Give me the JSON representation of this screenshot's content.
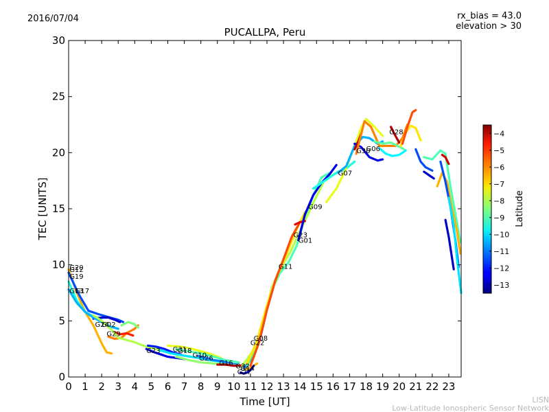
{
  "date_label": "2016/07/04",
  "info_lines": [
    "rx_bias = 43.0",
    "elevation > 30"
  ],
  "watermark_lines": [
    "LISN",
    "Low-Latitude Ionospheric Sensor Network"
  ],
  "chart_data": {
    "type": "scatter",
    "title": "PUCALLPA, Peru",
    "xlabel": "Time [UT]",
    "ylabel": "TEC [UNITS]",
    "xlim": [
      0,
      23.75
    ],
    "ylim": [
      0,
      30
    ],
    "x_ticks": [
      "0",
      "1",
      "2",
      "3",
      "4",
      "5",
      "6",
      "7",
      "8",
      "9",
      "10",
      "11",
      "12",
      "13",
      "14",
      "15",
      "16",
      "17",
      "18",
      "19",
      "20",
      "21",
      "22",
      "23"
    ],
    "y_ticks": [
      "0",
      "5",
      "10",
      "15",
      "20",
      "25",
      "30"
    ],
    "grid": false,
    "colorbar": {
      "label": "Latitude",
      "range": [
        -13.5,
        -3.5
      ],
      "ticks": [
        "−4",
        "−5",
        "−6",
        "−7",
        "−8",
        "−9",
        "−10",
        "−11",
        "−12",
        "−13"
      ],
      "tick_values": [
        -4,
        -5,
        -6,
        -7,
        -8,
        -9,
        -10,
        -11,
        -12,
        -13
      ],
      "colormap": "jet"
    },
    "satellite_labels": [
      {
        "text": "G20",
        "x": 0.05,
        "y": 9.8
      },
      {
        "text": "G12",
        "x": 0.05,
        "y": 9.6
      },
      {
        "text": "G19",
        "x": 0.05,
        "y": 9.0
      },
      {
        "text": "G13",
        "x": 0.05,
        "y": 7.7
      },
      {
        "text": "G17",
        "x": 0.4,
        "y": 7.7
      },
      {
        "text": "G24",
        "x": 1.6,
        "y": 4.7
      },
      {
        "text": "G02",
        "x": 2.0,
        "y": 4.7
      },
      {
        "text": "G29",
        "x": 2.3,
        "y": 3.9
      },
      {
        "text": "G23",
        "x": 4.7,
        "y": 2.4
      },
      {
        "text": "G31",
        "x": 6.3,
        "y": 2.5
      },
      {
        "text": "G18",
        "x": 6.6,
        "y": 2.4
      },
      {
        "text": "G10",
        "x": 7.5,
        "y": 2.0
      },
      {
        "text": "G26",
        "x": 7.9,
        "y": 1.7
      },
      {
        "text": "G16",
        "x": 9.1,
        "y": 1.3
      },
      {
        "text": "G32",
        "x": 10.1,
        "y": 1.0
      },
      {
        "text": "G14",
        "x": 10.4,
        "y": 0.8
      },
      {
        "text": "G27",
        "x": 10.2,
        "y": 0.5
      },
      {
        "text": "G08",
        "x": 11.2,
        "y": 3.5
      },
      {
        "text": "G22",
        "x": 11.0,
        "y": 3.1
      },
      {
        "text": "G11",
        "x": 12.7,
        "y": 9.9
      },
      {
        "text": "G23",
        "x": 13.6,
        "y": 12.7
      },
      {
        "text": "G01",
        "x": 13.9,
        "y": 12.2
      },
      {
        "text": "G09",
        "x": 14.5,
        "y": 15.2
      },
      {
        "text": "G07",
        "x": 16.3,
        "y": 18.2
      },
      {
        "text": "G30",
        "x": 17.4,
        "y": 20.2
      },
      {
        "text": "G06",
        "x": 18.0,
        "y": 20.4
      },
      {
        "text": "G28",
        "x": 19.4,
        "y": 21.9
      }
    ],
    "series": [
      {
        "lat": -6.5,
        "x": [
          0,
          0.5,
          1,
          1.5,
          2,
          2.3,
          2.6
        ],
        "y": [
          9.6,
          7.5,
          5.8,
          4.6,
          3.0,
          2.2,
          2.1
        ]
      },
      {
        "lat": -11.5,
        "x": [
          0,
          0.6,
          1.2,
          1.8,
          2.5,
          3,
          3.3
        ],
        "y": [
          9.3,
          7.4,
          5.9,
          5.6,
          5.3,
          5.1,
          4.9
        ]
      },
      {
        "lat": -9.5,
        "x": [
          0,
          0.5,
          1,
          1.5,
          2
        ],
        "y": [
          8.5,
          6.8,
          5.8,
          5.4,
          5.2
        ]
      },
      {
        "lat": -12.8,
        "x": [
          1.5,
          2,
          2.4,
          2.8,
          3.1
        ],
        "y": [
          5.2,
          5.3,
          5.3,
          5.1,
          4.9
        ]
      },
      {
        "lat": -10.5,
        "x": [
          0,
          0.5,
          1,
          1.5,
          2,
          2.5,
          3
        ],
        "y": [
          7.8,
          6.6,
          5.8,
          5.3,
          4.9,
          4.5,
          4.3
        ]
      },
      {
        "lat": -6.0,
        "x": [
          2.4,
          2.8,
          3.2,
          3.5,
          4,
          4.2
        ],
        "y": [
          3.6,
          3.4,
          3.5,
          3.9,
          4.3,
          4.6
        ]
      },
      {
        "lat": -5.0,
        "x": [
          2.8,
          3.1,
          3.5,
          3.9
        ],
        "y": [
          4.0,
          3.8,
          3.9,
          3.7
        ]
      },
      {
        "lat": -8.0,
        "x": [
          1.5,
          2,
          2.6,
          3,
          3.5,
          4,
          4.5,
          5,
          5.5,
          6
        ],
        "y": [
          5.5,
          5.0,
          4.2,
          3.5,
          3.3,
          3.1,
          2.8,
          2.6,
          2.4,
          2.2
        ]
      },
      {
        "lat": -8.5,
        "x": [
          3.2,
          3.6,
          4.0,
          4.2
        ],
        "y": [
          4.6,
          4.9,
          4.7,
          4.4
        ]
      },
      {
        "lat": -12.5,
        "x": [
          4.7,
          5.2,
          5.6,
          6,
          6.5,
          7
        ],
        "y": [
          2.5,
          2.2,
          2.0,
          1.8,
          1.7,
          1.6
        ]
      },
      {
        "lat": -12.0,
        "x": [
          4.8,
          5.3,
          5.8,
          6.3,
          6.8
        ],
        "y": [
          2.8,
          2.7,
          2.5,
          2.2,
          2.0
        ]
      },
      {
        "lat": -7.5,
        "x": [
          6,
          6.8,
          7.5,
          8,
          8.7,
          9.2
        ],
        "y": [
          2.8,
          2.7,
          2.5,
          2.3,
          2.0,
          1.7
        ]
      },
      {
        "lat": -9.0,
        "x": [
          6.5,
          7.2,
          8,
          8.8,
          9.5,
          10.3
        ],
        "y": [
          2.5,
          2.3,
          2.1,
          1.8,
          1.5,
          1.3
        ]
      },
      {
        "lat": -10.0,
        "x": [
          5.5,
          6.2,
          7,
          7.8,
          8.5,
          9,
          9.5
        ],
        "y": [
          2.4,
          2.1,
          1.9,
          1.7,
          1.5,
          1.4,
          1.3
        ]
      },
      {
        "lat": -11.0,
        "x": [
          7.8,
          8.3,
          8.8,
          9.3,
          9.8,
          10.2
        ],
        "y": [
          1.9,
          1.7,
          1.5,
          1.4,
          1.2,
          1.1
        ]
      },
      {
        "lat": -8.3,
        "x": [
          6.5,
          7.3,
          8,
          8.8,
          9.6,
          10.2
        ],
        "y": [
          1.8,
          1.5,
          1.3,
          1.2,
          1.1,
          1.0
        ]
      },
      {
        "lat": -4.0,
        "x": [
          9.0,
          9.5,
          10.0,
          10.4,
          10.6
        ],
        "y": [
          1.1,
          1.1,
          1.0,
          1.0,
          1.1
        ]
      },
      {
        "lat": -6.5,
        "x": [
          10.6,
          10.8,
          11,
          11.2,
          11.4
        ],
        "y": [
          0.8,
          0.7,
          0.8,
          1.0,
          1.2
        ]
      },
      {
        "lat": -13.0,
        "x": [
          10.4,
          10.6,
          10.8,
          11,
          11.2
        ],
        "y": [
          0.4,
          0.3,
          0.4,
          0.6,
          1.0
        ]
      },
      {
        "lat": -11.0,
        "x": [
          10.6,
          11.2,
          11.6,
          12,
          12.5,
          13,
          13.4
        ],
        "y": [
          0.8,
          1.8,
          3.5,
          6.0,
          8.6,
          10.4,
          11.8
        ]
      },
      {
        "lat": -9.0,
        "x": [
          10.8,
          11.3,
          11.8,
          12.3,
          12.8,
          13.3,
          13.8,
          14.3,
          14.8,
          15.3,
          15.8
        ],
        "y": [
          1.0,
          2.6,
          5.0,
          7.8,
          9.3,
          10.2,
          11.7,
          14.2,
          16.2,
          17.8,
          18.2
        ]
      },
      {
        "lat": -8.0,
        "x": [
          10.5,
          11.2,
          11.8,
          12.3,
          12.8,
          13.4,
          14,
          14.8,
          15.5,
          16.3
        ],
        "y": [
          1.0,
          2.4,
          5.0,
          8.0,
          9.6,
          11.1,
          13.0,
          15.5,
          17.6,
          18.3
        ]
      },
      {
        "lat": -7.0,
        "x": [
          10.8,
          11.4,
          12,
          12.6,
          13.2,
          13.8,
          14.3
        ],
        "y": [
          1.2,
          3.2,
          6.4,
          9.0,
          11.0,
          13.2,
          14.7
        ]
      },
      {
        "lat": -5.5,
        "x": [
          11,
          11.5,
          12,
          12.5,
          13,
          13.5,
          14
        ],
        "y": [
          1.0,
          3.0,
          6.0,
          8.6,
          10.5,
          12.5,
          13.8
        ]
      },
      {
        "lat": -4.5,
        "x": [
          13.7,
          14.0,
          14.3
        ],
        "y": [
          13.6,
          13.8,
          13.9
        ]
      },
      {
        "lat": -12.5,
        "x": [
          13.9,
          14.3,
          14.8,
          15.3,
          15.8,
          16.2
        ],
        "y": [
          12.2,
          14.5,
          16.2,
          17.3,
          18.1,
          18.9
        ]
      },
      {
        "lat": -9.5,
        "x": [
          14.8,
          15.3,
          15.8,
          16.3,
          16.8,
          17.3
        ],
        "y": [
          16.8,
          17.3,
          17.8,
          18.3,
          18.6,
          19.2
        ]
      },
      {
        "lat": -7.5,
        "x": [
          15.6,
          16.2,
          16.7,
          17.2,
          17.7,
          18.0,
          18.5,
          19.0
        ],
        "y": [
          15.6,
          16.8,
          18.3,
          20.2,
          22.2,
          23.0,
          22.3,
          21.5
        ]
      },
      {
        "lat": -10.5,
        "x": [
          16.3,
          16.8,
          17.3,
          17.8,
          18.2,
          18.7,
          19.0
        ],
        "y": [
          18.2,
          18.8,
          20.6,
          21.4,
          21.3,
          20.8,
          21.0
        ]
      },
      {
        "lat": -12.5,
        "x": [
          17.3,
          17.7,
          18.2,
          18.7,
          19.0
        ],
        "y": [
          20.8,
          20.5,
          19.6,
          19.3,
          19.4
        ]
      },
      {
        "lat": -4.0,
        "x": [
          17.3,
          17.5,
          17.7
        ],
        "y": [
          20.3,
          20.9,
          21.7
        ]
      },
      {
        "lat": -6.0,
        "x": [
          17.4,
          17.9,
          18.3,
          18.8,
          19.3,
          19.8,
          20.2,
          20.5
        ],
        "y": [
          19.9,
          22.8,
          22.3,
          20.6,
          20.6,
          20.6,
          21.3,
          22.5
        ]
      },
      {
        "lat": -8.8,
        "x": [
          18.5,
          19.0,
          19.5,
          19.9,
          20.3
        ],
        "y": [
          21.0,
          20.8,
          20.9,
          20.6,
          20.3
        ]
      },
      {
        "lat": -9.8,
        "x": [
          18.8,
          19.2,
          19.6,
          20.0,
          20.4
        ],
        "y": [
          20.4,
          19.9,
          19.7,
          19.8,
          20.2
        ]
      },
      {
        "lat": -4.0,
        "x": [
          19.5,
          19.7,
          20.0
        ],
        "y": [
          22.3,
          21.7,
          20.9
        ]
      },
      {
        "lat": -7.0,
        "x": [
          20.1,
          20.4,
          20.7,
          21.0,
          21.3
        ],
        "y": [
          20.6,
          21.8,
          22.4,
          22.2,
          21.1
        ]
      },
      {
        "lat": -5.5,
        "x": [
          20.2,
          20.5,
          20.8,
          21.0
        ],
        "y": [
          20.8,
          22.3,
          23.6,
          23.8
        ]
      },
      {
        "lat": -11.5,
        "x": [
          21.0,
          21.3,
          21.6,
          22.0
        ],
        "y": [
          20.3,
          19.2,
          18.7,
          18.4
        ]
      },
      {
        "lat": -12.8,
        "x": [
          21.5,
          21.8,
          22.1
        ],
        "y": [
          18.3,
          18.0,
          17.7
        ]
      },
      {
        "lat": -9.0,
        "x": [
          21.5,
          22,
          22.5,
          22.8,
          23.1,
          23.4,
          23.7
        ],
        "y": [
          19.6,
          19.4,
          20.2,
          19.9,
          17.0,
          14.5,
          12.0
        ]
      },
      {
        "lat": -4.3,
        "x": [
          22.6,
          22.8,
          23.0
        ],
        "y": [
          19.8,
          19.6,
          19.0
        ]
      },
      {
        "lat": -6.5,
        "x": [
          22.3,
          22.6,
          22.9,
          23.2,
          23.5,
          23.7
        ],
        "y": [
          17.0,
          18.2,
          17.4,
          15.0,
          13.0,
          11.0
        ]
      },
      {
        "lat": -11.5,
        "x": [
          22.5,
          22.8,
          23.1,
          23.4,
          23.6
        ],
        "y": [
          19.2,
          17.4,
          15.2,
          12.2,
          9.8
        ]
      },
      {
        "lat": -12.8,
        "x": [
          22.8,
          23.0,
          23.3
        ],
        "y": [
          14.0,
          12.5,
          9.6
        ]
      },
      {
        "lat": -10.0,
        "x": [
          23.0,
          23.3,
          23.5,
          23.75
        ],
        "y": [
          16.0,
          13.5,
          10.5,
          7.5
        ]
      }
    ]
  }
}
